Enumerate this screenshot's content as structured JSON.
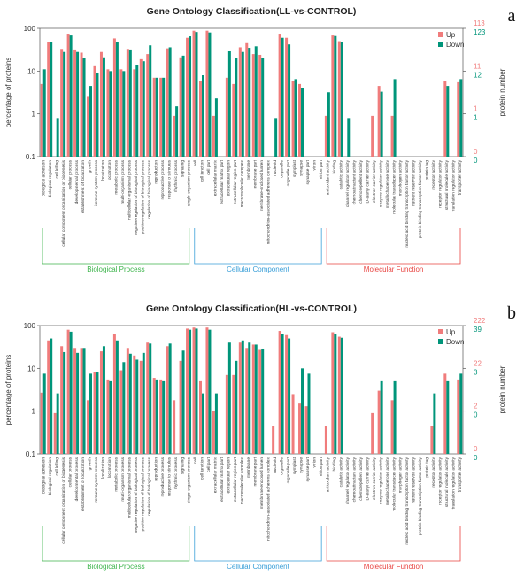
{
  "chart_data": [
    {
      "type": "bar",
      "title": "Gene Ontology Classification(LL-vs-CONTROL)",
      "panel_label": "a",
      "ylabel": "percentage of proteins",
      "y2label": "protein number",
      "log_y": true,
      "ylim": [
        0.1,
        100
      ],
      "yticks": [
        0.1,
        1,
        10,
        100
      ],
      "legend": "upper right",
      "groups": [
        {
          "name": "Biological Process",
          "color": "#3cb44b",
          "categories": [
            "biological adhesion",
            "biological regulation",
            "cell killing",
            "cellular component organization or biogenesis",
            "cellular process",
            "developmental process",
            "establishment of localization",
            "growth",
            "immune system process",
            "localization",
            "locomotion",
            "metabolic process",
            "multi-organism process",
            "multicellular organismal process",
            "negative regulation of biological process",
            "positive regulation of biological process",
            "regulation of biological process",
            "reproduction",
            "reproductive process",
            "response to stimulus",
            "rhythmic process",
            "signaling",
            "single-organism process"
          ]
        },
        {
          "name": "Cellular Component",
          "color": "#3a9fd8",
          "categories": [
            "cell",
            "cell junction",
            "cell part",
            "extracellular matrix",
            "extracellular matrix part",
            "extracellular region",
            "extracellular region part",
            "macromolecular complex",
            "membrane",
            "membrane part",
            "membrane-enclosed lumen",
            "mitochondrion-associated adherens complex",
            "nucleoid",
            "organelle",
            "organelle part",
            "symplast",
            "synapse",
            "synapse part",
            "virion",
            "virion part"
          ]
        },
        {
          "name": "Molecular Function",
          "color": "#e8423f",
          "categories": [
            "antioxidant activity",
            "binding",
            "catalytic activity",
            "channel regulator activity",
            "chemoattractant activity",
            "chemorepellent activity",
            "D-alanyl carrier activity",
            "electron carrier activity",
            "enzyme regulator activity",
            "metallochaperone activity",
            "molecular transducer activity",
            "morphogen activity",
            "nucleic acid binding transcription factor activity",
            "nutrient reservoir activity",
            "protein binding transcription factor activity",
            "protein tag",
            "receptor activity",
            "receptor regulator activity",
            "structural molecule activity",
            "translation regulator activity",
            "transporter activity"
          ]
        }
      ],
      "series": [
        {
          "name": "Up",
          "color": "#f07c7c",
          "y2ticks": [
            {
              "value": 0.1,
              "label": "0"
            },
            {
              "value": 1,
              "label": "1"
            },
            {
              "value": 10,
              "label": "11"
            },
            {
              "value": 100,
              "label": "113"
            }
          ],
          "values": [
            5,
            47,
            0,
            33,
            75,
            32,
            27,
            2.5,
            13,
            28,
            11,
            58,
            11,
            33,
            11,
            19,
            25,
            7,
            7,
            34,
            0.9,
            21,
            60,
            88,
            6,
            88,
            0.9,
            0,
            7,
            5,
            36,
            45,
            25,
            24,
            0,
            0,
            75,
            60,
            6,
            5,
            0,
            0,
            0,
            0.9,
            68,
            50,
            0,
            0,
            0,
            0,
            0.9,
            4.5,
            0,
            0.9,
            0,
            0,
            0,
            0,
            0,
            0,
            0,
            6,
            0,
            5.5
          ]
        },
        {
          "name": "Down",
          "color": "#00957a",
          "y2ticks": [
            {
              "value": 0.1,
              "label": "0"
            },
            {
              "value": 1,
              "label": "1"
            },
            {
              "value": 10,
              "label": "12"
            },
            {
              "value": 100,
              "label": "123"
            }
          ],
          "values": [
            11,
            48,
            0.8,
            28,
            68,
            28,
            20,
            4.5,
            9,
            21,
            10,
            48,
            10,
            32,
            14,
            17,
            40,
            7,
            7,
            36,
            1.5,
            23,
            65,
            82,
            8,
            80,
            2.3,
            0,
            29,
            20,
            28,
            35,
            38,
            20,
            0,
            0.8,
            60,
            42,
            6.5,
            4,
            0,
            0,
            0,
            3.2,
            66,
            48,
            0.8,
            0,
            0,
            0,
            0,
            3.3,
            0,
            6.5,
            0,
            0,
            0,
            0,
            0,
            0,
            0,
            4.5,
            0,
            6.5
          ]
        }
      ]
    },
    {
      "type": "bar",
      "title": "Gene Ontology Classification(HL-vs-CONTROL)",
      "panel_label": "b",
      "ylabel": "percentage of proteins",
      "y2label": "protein number",
      "log_y": true,
      "ylim": [
        0.1,
        100
      ],
      "yticks": [
        0.1,
        1,
        10,
        100
      ],
      "legend": "upper right",
      "groups": [
        {
          "name": "Biological Process",
          "color": "#3cb44b",
          "categories": [
            "biological adhesion",
            "biological regulation",
            "cell killing",
            "cellular component organization or biogenesis",
            "cellular process",
            "developmental process",
            "establishment of localization",
            "growth",
            "immune system process",
            "localization",
            "locomotion",
            "metabolic process",
            "multi-organism process",
            "multicellular organismal process",
            "negative regulation of biological process",
            "positive regulation of biological process",
            "regulation of biological process",
            "reproduction",
            "reproductive process",
            "response to stimulus",
            "rhythmic process",
            "signaling",
            "single-organism process"
          ]
        },
        {
          "name": "Cellular Component",
          "color": "#3a9fd8",
          "categories": [
            "cell",
            "cell junction",
            "cell part",
            "extracellular matrix",
            "extracellular matrix part",
            "extracellular region",
            "extracellular region part",
            "macromolecular complex",
            "membrane",
            "membrane part",
            "membrane-enclosed lumen",
            "mitochondrion-associated adherens complex",
            "nucleoid",
            "organelle",
            "organelle part",
            "symplast",
            "synapse",
            "synapse part",
            "virion",
            "virion part"
          ]
        },
        {
          "name": "Molecular Function",
          "color": "#e8423f",
          "categories": [
            "antioxidant activity",
            "binding",
            "catalytic activity",
            "channel regulator activity",
            "chemoattractant activity",
            "chemorepellent activity",
            "D-alanyl carrier activity",
            "electron carrier activity",
            "enzyme regulator activity",
            "metallochaperone activity",
            "molecular transducer activity",
            "morphogen activity",
            "nucleic acid binding transcription factor activity",
            "nutrient reservoir activity",
            "protein binding transcription factor activity",
            "protein tag",
            "receptor activity",
            "receptor regulator activity",
            "structural molecule activity",
            "translation regulator activity",
            "transporter activity"
          ]
        }
      ],
      "series": [
        {
          "name": "Up",
          "color": "#f07c7c",
          "y2ticks": [
            {
              "value": 0.1,
              "label": "0"
            },
            {
              "value": 1,
              "label": "2"
            },
            {
              "value": 10,
              "label": "22"
            },
            {
              "value": 100,
              "label": "222"
            }
          ],
          "values": [
            2.7,
            45,
            0.9,
            33,
            80,
            30,
            30,
            1.8,
            8,
            25,
            5.5,
            65,
            9,
            30,
            20,
            15,
            40,
            6,
            5.5,
            33,
            1.8,
            15,
            85,
            90,
            5,
            90,
            1,
            0,
            7,
            7,
            40,
            30,
            36,
            27,
            0,
            0.45,
            75,
            60,
            2.5,
            1.5,
            1.3,
            0,
            0,
            0.45,
            70,
            55,
            0,
            0,
            0,
            0,
            0.9,
            3,
            0,
            1.8,
            0,
            0,
            0,
            0,
            0,
            0.45,
            0,
            7.5,
            0,
            5.5
          ]
        },
        {
          "name": "Down",
          "color": "#00957a",
          "y2ticks": [
            {
              "value": 0.1,
              "label": "0"
            },
            {
              "value": 1,
              "label": "0"
            },
            {
              "value": 10,
              "label": "3"
            },
            {
              "value": 100,
              "label": "39"
            }
          ],
          "values": [
            7.5,
            50,
            2.6,
            24,
            72,
            23,
            30,
            7.5,
            8,
            33,
            5,
            45,
            14,
            22,
            16,
            23,
            38,
            5.5,
            5,
            38,
            0,
            26,
            80,
            85,
            2.6,
            80,
            2.6,
            0,
            40,
            15,
            45,
            40,
            36,
            29,
            0,
            0,
            65,
            50,
            0,
            10,
            7.5,
            0,
            0,
            0,
            65,
            52,
            0,
            0,
            0,
            0,
            0,
            5,
            0,
            5,
            0,
            0,
            0,
            0,
            0,
            2.6,
            0,
            5,
            0,
            7.5
          ]
        }
      ]
    }
  ]
}
